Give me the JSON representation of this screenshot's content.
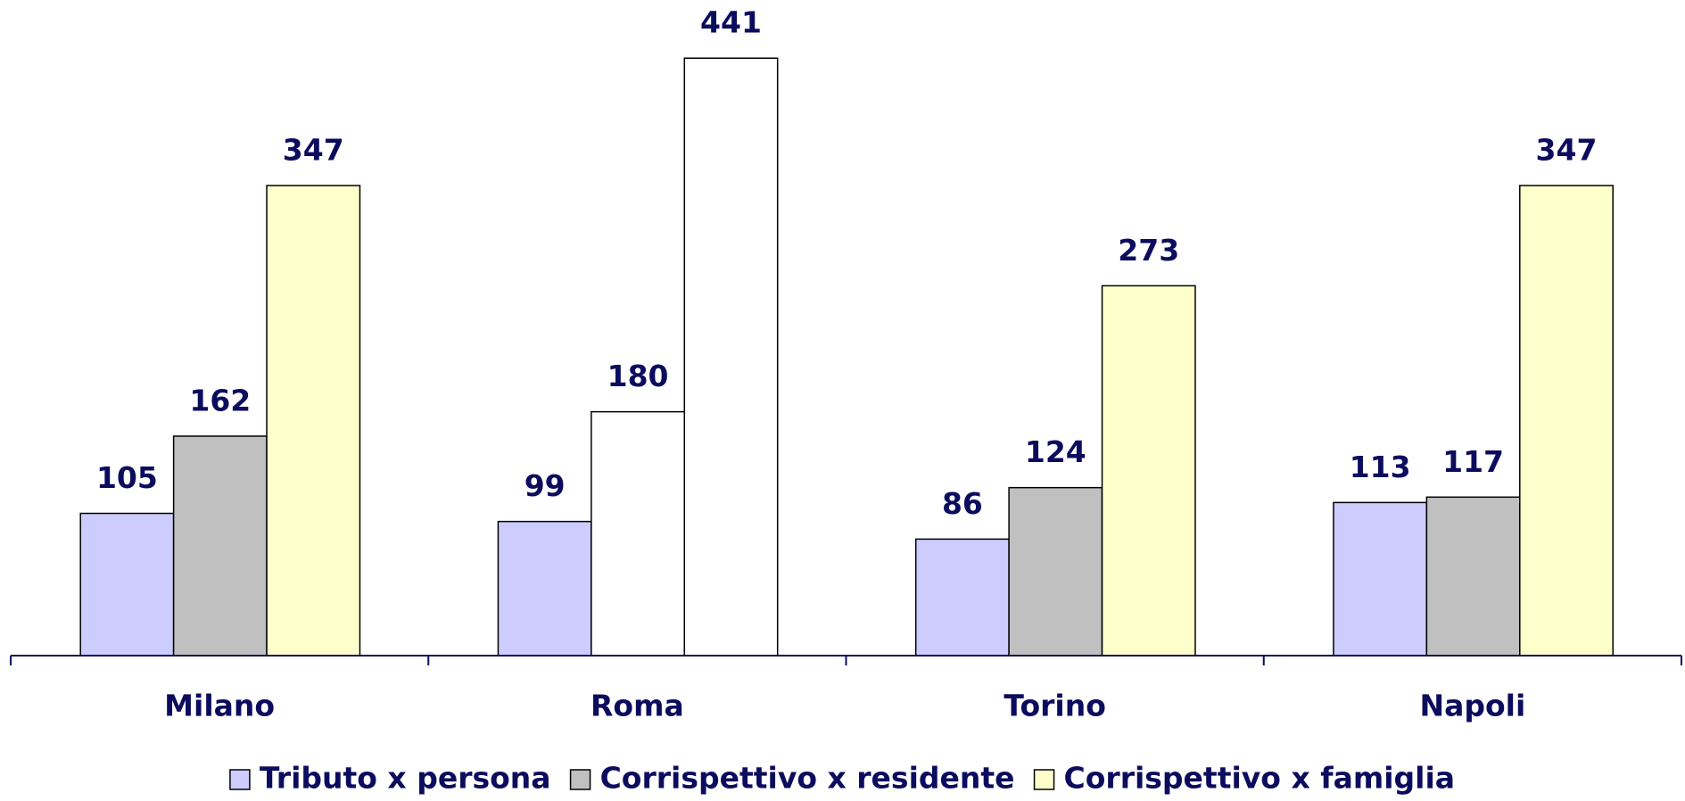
{
  "chart_data": {
    "type": "bar",
    "categories": [
      "Milano",
      "Roma",
      "Torino",
      "Napoli"
    ],
    "series": [
      {
        "name": "Tributo x persona",
        "color": "#ccccff",
        "colors": [
          "#ccccff",
          "#ccccff",
          "#ccccff",
          "#ccccff"
        ],
        "values": [
          105,
          99,
          86,
          113
        ]
      },
      {
        "name": "Corrispettivo x residente",
        "color": "#c0c0c0",
        "colors": [
          "#c0c0c0",
          "#ffffff",
          "#c0c0c0",
          "#c0c0c0"
        ],
        "values": [
          162,
          180,
          124,
          117
        ]
      },
      {
        "name": "Corrispettivo x famiglia",
        "color": "#ffffcc",
        "colors": [
          "#ffffcc",
          "#ffffff",
          "#ffffcc",
          "#ffffcc"
        ],
        "values": [
          347,
          441,
          273,
          347
        ]
      }
    ],
    "ylim": [
      0,
      480
    ],
    "legend": "bottom"
  }
}
